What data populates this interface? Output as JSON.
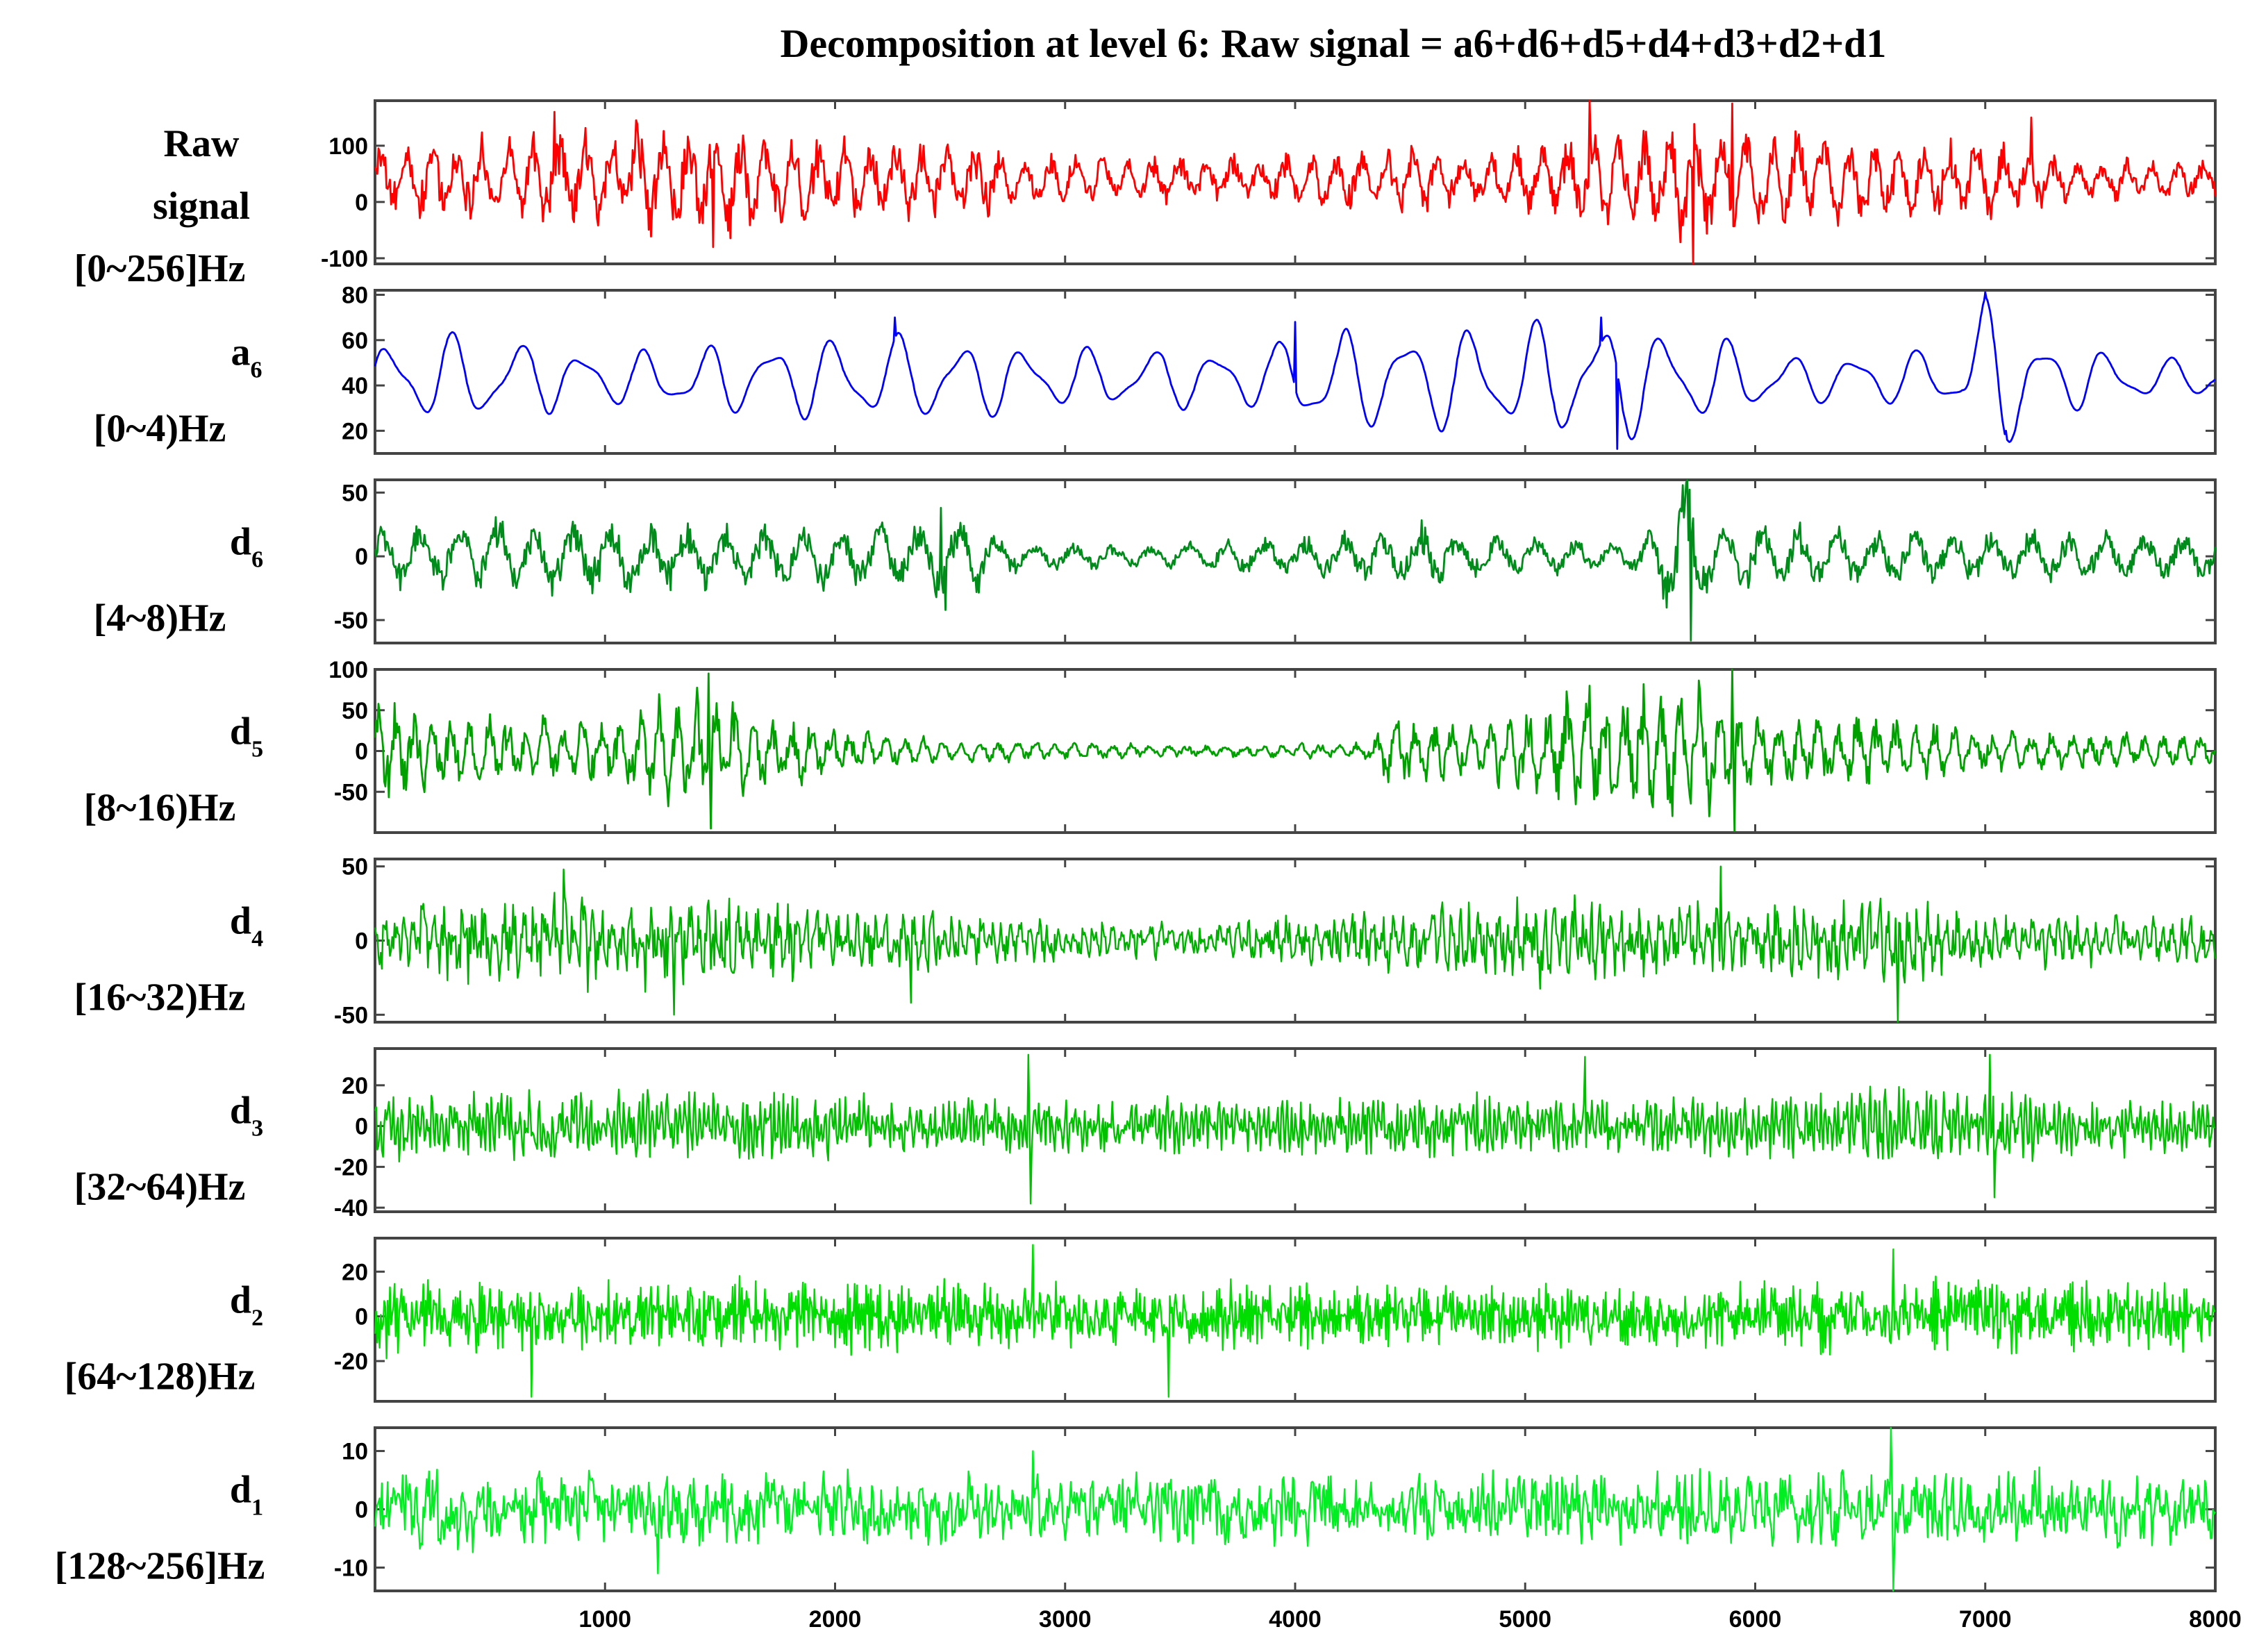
{
  "chart_data": {
    "type": "line",
    "title": "Decomposition at level 6: Raw signal = a6+d6+d5+d4+d3+d2+d1",
    "xlim": [
      0,
      8000
    ],
    "xticks": [
      1000,
      2000,
      3000,
      4000,
      5000,
      6000,
      7000,
      8000
    ],
    "grid": false,
    "panels": [
      {
        "label_lines": [
          "Raw",
          "signal",
          "[0~256]Hz"
        ],
        "label_sub": "",
        "ylim": [
          -110,
          180
        ],
        "yticks": [
          100,
          0,
          -100
        ],
        "color": "#ff0000",
        "amplitude": 55,
        "offset": 40,
        "envelope": [
          [
            0,
            0.9
          ],
          [
            600,
            1.0
          ],
          [
            1000,
            1.3
          ],
          [
            1400,
            1.4
          ],
          [
            1800,
            1.2
          ],
          [
            2500,
            0.9
          ],
          [
            3000,
            0.6
          ],
          [
            3800,
            0.55
          ],
          [
            4200,
            0.8
          ],
          [
            4900,
            0.7
          ],
          [
            5300,
            1.1
          ],
          [
            5700,
            1.4
          ],
          [
            6000,
            1.3
          ],
          [
            6600,
            1.0
          ],
          [
            7000,
            1.0
          ],
          [
            7400,
            0.5
          ],
          [
            8000,
            0.5
          ]
        ],
        "spikes": [
          [
            780,
            160
          ],
          [
            1470,
            -80
          ],
          [
            5280,
            180
          ],
          [
            5730,
            -110
          ],
          [
            5900,
            175
          ],
          [
            7200,
            150
          ]
        ]
      },
      {
        "label_lines": [
          "a",
          "[0~4)Hz"
        ],
        "label_sub": "6",
        "ylim": [
          10,
          82
        ],
        "yticks": [
          80,
          60,
          40,
          20
        ],
        "color": "#0000ff",
        "amplitude": 16,
        "offset": 43,
        "envelope": [
          [
            0,
            1.0
          ],
          [
            400,
            1.2
          ],
          [
            1000,
            0.7
          ],
          [
            2200,
            1.2
          ],
          [
            3000,
            0.8
          ],
          [
            3900,
            0.8
          ],
          [
            4000,
            1.4
          ],
          [
            4400,
            1.3
          ],
          [
            5400,
            1.6
          ],
          [
            6200,
            0.6
          ],
          [
            6900,
            0.8
          ],
          [
            7000,
            2.2
          ],
          [
            7300,
            0.9
          ],
          [
            8000,
            0.4
          ]
        ],
        "spikes": [
          [
            2260,
            70
          ],
          [
            4000,
            68
          ],
          [
            5330,
            70
          ],
          [
            5400,
            12
          ],
          [
            7000,
            81
          ],
          [
            7090,
            20
          ]
        ]
      },
      {
        "label_lines": [
          "d",
          "[4~8)Hz"
        ],
        "label_sub": "6",
        "ylim": [
          -68,
          60
        ],
        "yticks": [
          50,
          0,
          -50
        ],
        "color": "#008c1a",
        "amplitude": 20,
        "offset": 0,
        "envelope": [
          [
            0,
            0.9
          ],
          [
            900,
            1.2
          ],
          [
            1500,
            0.9
          ],
          [
            2400,
            1.0
          ],
          [
            2500,
            1.4
          ],
          [
            2800,
            0.4
          ],
          [
            3300,
            0.3
          ],
          [
            3800,
            0.5
          ],
          [
            4100,
            0.6
          ],
          [
            4600,
            1.0
          ],
          [
            4800,
            0.6
          ],
          [
            5500,
            0.5
          ],
          [
            5700,
            2.3
          ],
          [
            5800,
            1.0
          ],
          [
            6200,
            0.9
          ],
          [
            7000,
            0.8
          ],
          [
            8000,
            0.7
          ]
        ],
        "spikes": [
          [
            5700,
            58
          ],
          [
            5720,
            -66
          ],
          [
            2460,
            38
          ],
          [
            2480,
            -42
          ]
        ]
      },
      {
        "label_lines": [
          "d",
          "[8~16)Hz"
        ],
        "label_sub": "5",
        "ylim": [
          -100,
          100
        ],
        "yticks": [
          100,
          50,
          0,
          -50
        ],
        "color": "#00a000",
        "amplitude": 28,
        "offset": 0,
        "envelope": [
          [
            0,
            1.6
          ],
          [
            500,
            1.2
          ],
          [
            900,
            1.1
          ],
          [
            1400,
            2.0
          ],
          [
            1700,
            1.2
          ],
          [
            2300,
            0.5
          ],
          [
            2900,
            0.3
          ],
          [
            3600,
            0.2
          ],
          [
            4300,
            0.25
          ],
          [
            4400,
            1.1
          ],
          [
            4800,
            0.9
          ],
          [
            5200,
            2.0
          ],
          [
            5800,
            2.2
          ],
          [
            6000,
            1.3
          ],
          [
            6500,
            1.2
          ],
          [
            7000,
            0.7
          ],
          [
            8000,
            0.5
          ]
        ],
        "spikes": [
          [
            1450,
            95
          ],
          [
            1460,
            -95
          ],
          [
            5900,
            100
          ],
          [
            5910,
            -98
          ],
          [
            5280,
            80
          ],
          [
            5800,
            -80
          ]
        ]
      },
      {
        "label_lines": [
          "d",
          "[16~32)Hz"
        ],
        "label_sub": "4",
        "ylim": [
          -55,
          55
        ],
        "yticks": [
          50,
          0,
          -50
        ],
        "color": "#00b000",
        "amplitude": 12,
        "offset": 0,
        "envelope": [
          [
            0,
            1.0
          ],
          [
            800,
            1.5
          ],
          [
            1400,
            1.4
          ],
          [
            2000,
            1.0
          ],
          [
            2500,
            0.9
          ],
          [
            3000,
            0.6
          ],
          [
            3600,
            0.5
          ],
          [
            4200,
            0.9
          ],
          [
            4700,
            1.2
          ],
          [
            5100,
            1.4
          ],
          [
            5600,
            1.2
          ],
          [
            6000,
            1.2
          ],
          [
            6600,
            1.4
          ],
          [
            7000,
            0.8
          ],
          [
            8000,
            0.7
          ]
        ],
        "spikes": [
          [
            820,
            48
          ],
          [
            1300,
            -50
          ],
          [
            2330,
            -42
          ],
          [
            5850,
            50
          ],
          [
            6620,
            -55
          ]
        ]
      },
      {
        "label_lines": [
          "d",
          "[32~64)Hz"
        ],
        "label_sub": "3",
        "ylim": [
          -42,
          38
        ],
        "yticks": [
          20,
          0,
          -20,
          -40
        ],
        "color": "#00c000",
        "amplitude": 8,
        "offset": 0,
        "envelope": [
          [
            0,
            1.2
          ],
          [
            900,
            1.3
          ],
          [
            1800,
            1.1
          ],
          [
            2600,
            0.9
          ],
          [
            3400,
            0.9
          ],
          [
            4300,
            1.0
          ],
          [
            5200,
            1.0
          ],
          [
            6000,
            1.0
          ],
          [
            6600,
            1.3
          ],
          [
            7300,
            1.0
          ],
          [
            8000,
            0.8
          ]
        ],
        "spikes": [
          [
            2840,
            35
          ],
          [
            2850,
            -38
          ],
          [
            5260,
            34
          ],
          [
            7020,
            35
          ],
          [
            7040,
            -35
          ]
        ]
      },
      {
        "label_lines": [
          "d",
          "[64~128)Hz"
        ],
        "label_sub": "2",
        "ylim": [
          -38,
          35
        ],
        "yticks": [
          20,
          0,
          -20
        ],
        "color": "#00dd00",
        "amplitude": 8,
        "offset": 0,
        "envelope": [
          [
            0,
            1.2
          ],
          [
            1500,
            1.1
          ],
          [
            3000,
            1.0
          ],
          [
            4500,
            1.0
          ],
          [
            6000,
            1.0
          ],
          [
            6600,
            1.2
          ],
          [
            8000,
            1.0
          ]
        ],
        "spikes": [
          [
            680,
            -36
          ],
          [
            2860,
            32
          ],
          [
            3450,
            -36
          ],
          [
            6600,
            30
          ]
        ]
      },
      {
        "label_lines": [
          "d",
          "[128~256]Hz"
        ],
        "label_sub": "1",
        "ylim": [
          -14,
          14
        ],
        "yticks": [
          10,
          0,
          -10
        ],
        "color": "#00ee22",
        "amplitude": 3.4,
        "offset": 0,
        "envelope": [
          [
            0,
            1.1
          ],
          [
            2000,
            1.0
          ],
          [
            4000,
            1.0
          ],
          [
            6000,
            1.0
          ],
          [
            8000,
            1.0
          ]
        ],
        "spikes": [
          [
            6590,
            14
          ],
          [
            6600,
            -14
          ],
          [
            2860,
            10
          ],
          [
            1230,
            -11
          ]
        ]
      }
    ]
  }
}
